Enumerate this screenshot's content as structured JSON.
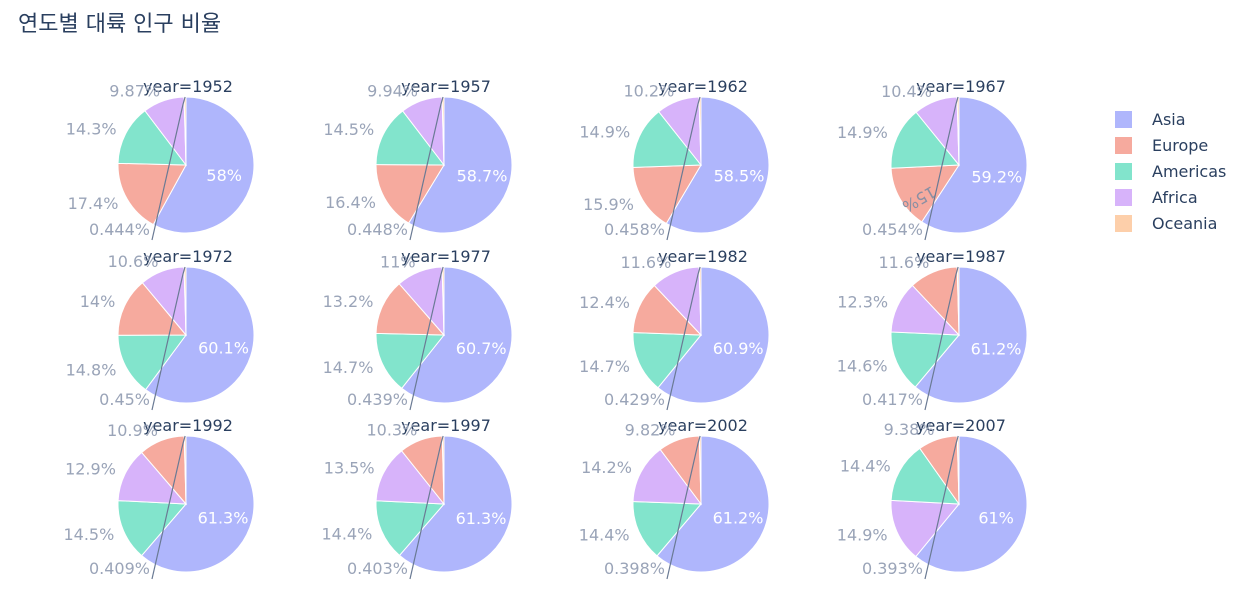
{
  "title": "연도별 대륙 인구 비율",
  "chart_data": {
    "type": "pie",
    "legend_position": "right",
    "categories": [
      "Asia",
      "Europe",
      "Americas",
      "Africa",
      "Oceania"
    ],
    "colors": {
      "Asia": "#AFB6FC",
      "Europe": "#F6AA9E",
      "Americas": "#82E4CC",
      "Africa": "#D7B3FA",
      "Oceania": "#FDCFAA"
    },
    "panels": [
      {
        "title": "year=1952",
        "values": {
          "Asia": 58.0,
          "Europe": 17.4,
          "Americas": 14.3,
          "Africa": 9.87,
          "Oceania": 0.444
        },
        "labels": {
          "Asia": "58%",
          "Europe": "17.4%",
          "Americas": "14.3%",
          "Africa": "9.87%",
          "Oceania": "0.444%"
        }
      },
      {
        "title": "year=1957",
        "values": {
          "Asia": 58.7,
          "Europe": 16.4,
          "Americas": 14.5,
          "Africa": 9.94,
          "Oceania": 0.448
        },
        "labels": {
          "Asia": "58.7%",
          "Europe": "16.4%",
          "Americas": "14.5%",
          "Africa": "9.94%",
          "Oceania": "0.448%"
        }
      },
      {
        "title": "year=1962",
        "values": {
          "Asia": 58.5,
          "Europe": 15.9,
          "Americas": 14.9,
          "Africa": 10.2,
          "Oceania": 0.458
        },
        "labels": {
          "Asia": "58.5%",
          "Europe": "15.9%",
          "Americas": "14.9%",
          "Africa": "10.2%",
          "Oceania": "0.458%"
        }
      },
      {
        "title": "year=1967",
        "values": {
          "Asia": 59.2,
          "Europe": 15.0,
          "Americas": 14.9,
          "Africa": 10.4,
          "Oceania": 0.454
        },
        "labels": {
          "Asia": "59.2%",
          "Europe": "15%",
          "Americas": "14.9%",
          "Africa": "10.4%",
          "Oceania": "0.454%"
        }
      },
      {
        "title": "year=1972",
        "values": {
          "Asia": 60.1,
          "Americas": 14.8,
          "Europe": 14.0,
          "Africa": 10.6,
          "Oceania": 0.45
        },
        "labels": {
          "Asia": "60.1%",
          "Europe": "14%",
          "Americas": "14.8%",
          "Africa": "10.6%",
          "Oceania": "0.45%"
        }
      },
      {
        "title": "year=1977",
        "values": {
          "Asia": 60.7,
          "Americas": 14.7,
          "Europe": 13.2,
          "Africa": 11.0,
          "Oceania": 0.439
        },
        "labels": {
          "Asia": "60.7%",
          "Europe": "13.2%",
          "Americas": "14.7%",
          "Africa": "11%",
          "Oceania": "0.439%"
        }
      },
      {
        "title": "year=1982",
        "values": {
          "Asia": 60.9,
          "Americas": 14.7,
          "Europe": 12.4,
          "Africa": 11.6,
          "Oceania": 0.429
        },
        "labels": {
          "Asia": "60.9%",
          "Europe": "12.4%",
          "Americas": "14.7%",
          "Africa": "11.6%",
          "Oceania": "0.429%"
        }
      },
      {
        "title": "year=1987",
        "values": {
          "Asia": 61.2,
          "Americas": 14.6,
          "Africa": 12.3,
          "Europe": 11.6,
          "Oceania": 0.417
        },
        "labels": {
          "Asia": "61.2%",
          "Europe": "11.6%",
          "Americas": "14.6%",
          "Africa": "12.3%",
          "Oceania": "0.417%"
        }
      },
      {
        "title": "year=1992",
        "values": {
          "Asia": 61.3,
          "Americas": 14.5,
          "Africa": 12.9,
          "Europe": 10.9,
          "Oceania": 0.409
        },
        "labels": {
          "Asia": "61.3%",
          "Europe": "10.9%",
          "Americas": "14.5%",
          "Africa": "12.9%",
          "Oceania": "0.409%"
        }
      },
      {
        "title": "year=1997",
        "values": {
          "Asia": 61.3,
          "Americas": 14.4,
          "Africa": 13.5,
          "Europe": 10.3,
          "Oceania": 0.403
        },
        "labels": {
          "Asia": "61.3%",
          "Europe": "10.3%",
          "Americas": "14.4%",
          "Africa": "13.5%",
          "Oceania": "0.403%"
        }
      },
      {
        "title": "year=2002",
        "values": {
          "Asia": 61.2,
          "Americas": 14.4,
          "Africa": 14.2,
          "Europe": 9.82,
          "Oceania": 0.398
        },
        "labels": {
          "Asia": "61.2%",
          "Europe": "9.82%",
          "Americas": "14.4%",
          "Africa": "14.2%",
          "Oceania": "0.398%"
        }
      },
      {
        "title": "year=2007",
        "values": {
          "Asia": 61.0,
          "Africa": 14.9,
          "Americas": 14.4,
          "Europe": 9.38,
          "Oceania": 0.393
        },
        "labels": {
          "Asia": "61%",
          "Europe": "9.38%",
          "Americas": "14.4%",
          "Africa": "14.9%",
          "Oceania": "0.393%"
        }
      }
    ]
  }
}
